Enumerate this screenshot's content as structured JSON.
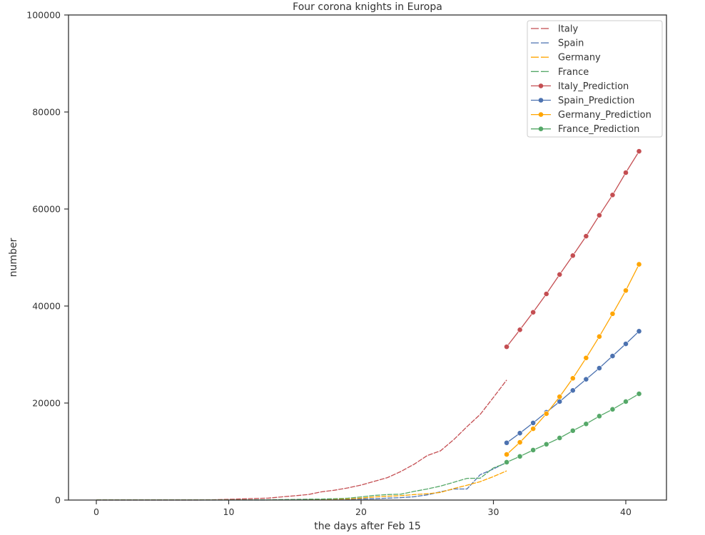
{
  "chart_data": {
    "type": "line",
    "title": "Four corona knights in Europa",
    "xlabel": "the days after Feb 15",
    "ylabel": "number",
    "xlim": [
      -2.1,
      43.1
    ],
    "ylim": [
      0,
      100000
    ],
    "xticks": [
      0,
      10,
      20,
      30,
      40
    ],
    "yticks": [
      0,
      20000,
      40000,
      60000,
      80000,
      100000
    ],
    "grid": false,
    "legend_position": "upper right",
    "series": [
      {
        "name": "Italy",
        "color": "#c44e52",
        "style": "dashed",
        "x": [
          0,
          1,
          2,
          3,
          4,
          5,
          6,
          7,
          8,
          9,
          10,
          11,
          12,
          13,
          14,
          15,
          16,
          17,
          18,
          19,
          20,
          21,
          22,
          23,
          24,
          25,
          26,
          27,
          28,
          29,
          30,
          31
        ],
        "values": [
          3,
          3,
          3,
          3,
          3,
          3,
          3,
          3,
          20,
          79,
          150,
          229,
          322,
          400,
          650,
          888,
          1128,
          1694,
          2036,
          2502,
          3089,
          3858,
          4636,
          5883,
          7375,
          9172,
          10149,
          12462,
          15113,
          17660,
          21157,
          24747
        ]
      },
      {
        "name": "Spain",
        "color": "#4c72b0",
        "style": "dashed",
        "x": [
          0,
          1,
          2,
          3,
          4,
          5,
          6,
          7,
          8,
          9,
          10,
          11,
          12,
          13,
          14,
          15,
          16,
          17,
          18,
          19,
          20,
          21,
          22,
          23,
          24,
          25,
          26,
          27,
          28,
          29,
          30,
          31
        ],
        "values": [
          2,
          2,
          2,
          2,
          2,
          2,
          2,
          2,
          2,
          2,
          2,
          2,
          6,
          13,
          15,
          32,
          45,
          84,
          120,
          165,
          222,
          259,
          400,
          500,
          673,
          1073,
          1695,
          2277,
          2277,
          5232,
          6391,
          7798
        ]
      },
      {
        "name": "Germany",
        "color": "#ffa500",
        "style": "dashed",
        "x": [
          0,
          1,
          2,
          3,
          4,
          5,
          6,
          7,
          8,
          9,
          10,
          11,
          12,
          13,
          14,
          15,
          16,
          17,
          18,
          19,
          20,
          21,
          22,
          23,
          24,
          25,
          26,
          27,
          28,
          29,
          30,
          31
        ],
        "values": [
          16,
          16,
          16,
          16,
          16,
          16,
          16,
          16,
          16,
          16,
          16,
          18,
          21,
          26,
          53,
          66,
          117,
          150,
          188,
          240,
          400,
          639,
          795,
          902,
          1139,
          1296,
          1567,
          2369,
          3062,
          3795,
          4838,
          6012
        ]
      },
      {
        "name": "France",
        "color": "#55a868",
        "style": "dashed",
        "x": [
          0,
          1,
          2,
          3,
          4,
          5,
          6,
          7,
          8,
          9,
          10,
          11,
          12,
          13,
          14,
          15,
          16,
          17,
          18,
          19,
          20,
          21,
          22,
          23,
          24,
          25,
          26,
          27,
          28,
          29,
          30,
          31
        ],
        "values": [
          12,
          12,
          12,
          12,
          12,
          12,
          12,
          12,
          12,
          12,
          14,
          18,
          38,
          57,
          100,
          130,
          191,
          204,
          285,
          377,
          653,
          949,
          1126,
          1209,
          1784,
          2281,
          2876,
          3661,
          4469,
          4499,
          6633,
          7652
        ]
      },
      {
        "name": "Italy_Prediction",
        "color": "#c44e52",
        "style": "solid-marker",
        "x": [
          31,
          32,
          33,
          34,
          35,
          36,
          37,
          38,
          39,
          40,
          41
        ],
        "values": [
          31600,
          35100,
          38700,
          42500,
          46500,
          50400,
          54400,
          58700,
          62900,
          67500,
          71900
        ]
      },
      {
        "name": "Spain_Prediction",
        "color": "#4c72b0",
        "style": "solid-marker",
        "x": [
          31,
          32,
          33,
          34,
          35,
          36,
          37,
          38,
          39,
          40,
          41
        ],
        "values": [
          11800,
          13800,
          15900,
          18100,
          20300,
          22600,
          24900,
          27200,
          29700,
          32200,
          34800
        ]
      },
      {
        "name": "Germany_Prediction",
        "color": "#ffa500",
        "style": "solid-marker",
        "x": [
          31,
          32,
          33,
          34,
          35,
          36,
          37,
          38,
          39,
          40,
          41
        ],
        "values": [
          9400,
          11900,
          14700,
          17800,
          21300,
          25100,
          29300,
          33700,
          38400,
          43200,
          48600
        ]
      },
      {
        "name": "France_Prediction",
        "color": "#55a868",
        "style": "solid-marker",
        "x": [
          31,
          32,
          33,
          34,
          35,
          36,
          37,
          38,
          39,
          40,
          41
        ],
        "values": [
          7800,
          9000,
          10300,
          11500,
          12800,
          14300,
          15700,
          17300,
          18700,
          20300,
          21900
        ]
      }
    ]
  }
}
